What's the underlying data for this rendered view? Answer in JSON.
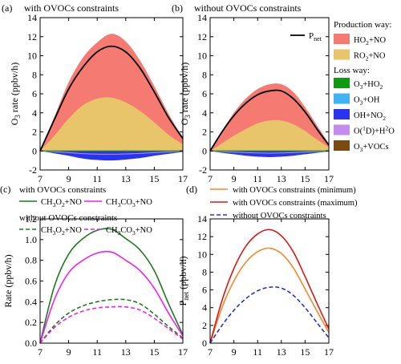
{
  "chart_data": [
    {
      "panel": "(a)",
      "title": "with OVOCs constraints",
      "type": "area",
      "ylabel": "O3 rate (ppbv/h)",
      "ylabel_main": "O",
      "ylabel_sub": "3",
      "ylabel_rest": " rate (ppbv/h)",
      "xlim": [
        7,
        17
      ],
      "ylim": [
        -2,
        14
      ],
      "xticks": [
        "7",
        "9",
        "11",
        "13",
        "15",
        "17"
      ],
      "yticks": [
        "-2",
        "0",
        "2",
        "4",
        "6",
        "8",
        "10",
        "12",
        "14"
      ],
      "x": [
        7,
        8,
        9,
        10,
        11,
        12,
        13,
        14,
        15,
        16,
        17
      ],
      "series": [
        {
          "name": "RO2+NO",
          "color": "#e8c46a",
          "values": [
            0,
            1.6,
            3.4,
            4.8,
            5.5,
            5.6,
            5.1,
            4.2,
            3.0,
            1.7,
            0.7
          ]
        },
        {
          "name": "HO2+NO",
          "color": "#f47a72",
          "values": [
            0,
            2.0,
            3.8,
            5.0,
            5.9,
            6.7,
            6.4,
            5.3,
            3.8,
            2.2,
            0.7
          ]
        },
        {
          "name": "OH+NO2",
          "color": "#2a33f0",
          "values": [
            0,
            -0.25,
            -0.5,
            -0.8,
            -0.95,
            -1.0,
            -0.9,
            -0.75,
            -0.5,
            -0.3,
            -0.1
          ]
        }
      ],
      "pnet": [
        0,
        3.3,
        6.5,
        8.8,
        10.4,
        11.0,
        10.4,
        8.7,
        6.2,
        3.5,
        1.3
      ]
    },
    {
      "panel": "(b)",
      "title": "without OVOCs constraints",
      "type": "area",
      "ylabel": "O3 rate (ppbv/h)",
      "ylabel_main": "O",
      "ylabel_sub": "3",
      "ylabel_rest": " rate (ppbv/h)",
      "xlim": [
        7,
        17
      ],
      "ylim": [
        -2,
        14
      ],
      "xticks": [
        "7",
        "9",
        "11",
        "13",
        "15",
        "17"
      ],
      "yticks": [
        "-2",
        "0",
        "2",
        "4",
        "6",
        "8",
        "10",
        "12",
        "14"
      ],
      "x": [
        7,
        8,
        9,
        10,
        11,
        12,
        13,
        14,
        15,
        16,
        17
      ],
      "series": [
        {
          "name": "RO2+NO",
          "color": "#e8c46a",
          "values": [
            0,
            0.8,
            1.6,
            2.3,
            2.9,
            3.2,
            3.2,
            2.8,
            2.1,
            1.2,
            0.4
          ]
        },
        {
          "name": "HO2+NO",
          "color": "#f47a72",
          "values": [
            0,
            1.3,
            2.4,
            3.2,
            3.6,
            3.8,
            3.8,
            3.4,
            2.5,
            1.5,
            0.4
          ]
        },
        {
          "name": "OH+NO2",
          "color": "#2a33f0",
          "values": [
            0,
            -0.2,
            -0.35,
            -0.5,
            -0.6,
            -0.65,
            -0.6,
            -0.5,
            -0.35,
            -0.2,
            -0.05
          ]
        }
      ],
      "pnet": [
        0,
        2.0,
        3.7,
        5.0,
        5.9,
        6.3,
        6.3,
        5.5,
        4.1,
        2.3,
        0.6
      ],
      "legend_pnet_main": "P",
      "legend_pnet_sub": "net"
    },
    {
      "panel": "(c)",
      "type": "line",
      "ylabel": "Rate (ppbv/h)",
      "xlim": [
        7,
        17
      ],
      "ylim": [
        0,
        1.2
      ],
      "xticks": [
        "7",
        "9",
        "11",
        "13",
        "15",
        "17"
      ],
      "yticks": [
        "0.0",
        "0.2",
        "0.4",
        "0.6",
        "0.8",
        "1.0",
        "1.2"
      ],
      "x": [
        7,
        8,
        9,
        10,
        11,
        12,
        13,
        14,
        15,
        16,
        17
      ],
      "legend_header_with": "with OVOCs constraints",
      "legend_header_without": "without OVOCs constraints",
      "series": [
        {
          "name": "CH3O2+NO",
          "label_parts": [
            "CH",
            "3",
            "O",
            "2",
            "+NO"
          ],
          "group": "with",
          "color": "#1e7a1e",
          "dash": false,
          "values": [
            0.0,
            0.55,
            0.86,
            1.01,
            1.09,
            1.1,
            1.01,
            0.9,
            0.7,
            0.38,
            0.08
          ]
        },
        {
          "name": "CH3CO3+NO",
          "label_parts": [
            "CH",
            "3",
            "CO",
            "3",
            "+NO"
          ],
          "group": "with",
          "color": "#ee22ee",
          "dash": false,
          "values": [
            0.0,
            0.42,
            0.68,
            0.8,
            0.87,
            0.88,
            0.8,
            0.7,
            0.53,
            0.29,
            0.07
          ]
        },
        {
          "name": "CH3O2+NO",
          "label_parts": [
            "CH",
            "3",
            "O",
            "2",
            "+NO"
          ],
          "group": "without",
          "color": "#1e7a1e",
          "dash": true,
          "values": [
            0.0,
            0.17,
            0.29,
            0.36,
            0.4,
            0.42,
            0.42,
            0.38,
            0.28,
            0.16,
            0.05
          ]
        },
        {
          "name": "CH3CO3+NO",
          "label_parts": [
            "CH",
            "3",
            "CO",
            "3",
            "+NO"
          ],
          "group": "without",
          "color": "#ee22ee",
          "dash": true,
          "values": [
            0.0,
            0.15,
            0.25,
            0.31,
            0.34,
            0.35,
            0.35,
            0.32,
            0.24,
            0.14,
            0.04
          ]
        }
      ]
    },
    {
      "panel": "(d)",
      "type": "line",
      "ylabel": "Pnet (ppbv/h)",
      "ylabel_main": "P",
      "ylabel_sub": "net",
      "ylabel_rest": " (ppbv/h)",
      "xlim": [
        7,
        17
      ],
      "ylim": [
        0,
        14
      ],
      "xticks": [
        "7",
        "9",
        "11",
        "13",
        "15",
        "17"
      ],
      "yticks": [
        "0",
        "2",
        "4",
        "6",
        "8",
        "10",
        "12",
        "14"
      ],
      "x": [
        7,
        8,
        9,
        10,
        11,
        12,
        13,
        14,
        15,
        16,
        17
      ],
      "series": [
        {
          "name": "with OVOCs constraints (minimum)",
          "color": "#f08a2a",
          "dash": false,
          "values": [
            0,
            4.0,
            7.0,
            9.1,
            10.3,
            10.7,
            10.1,
            8.5,
            6.1,
            3.6,
            1.2
          ]
        },
        {
          "name": "with OVOCs constraints (maximum)",
          "color": "#d61a1a",
          "dash": false,
          "values": [
            0,
            4.8,
            8.4,
            10.9,
            12.3,
            12.8,
            12.1,
            10.3,
            7.5,
            4.5,
            1.6
          ]
        },
        {
          "name": "without OVOCs constraints",
          "color": "#2233dd",
          "dash": true,
          "values": [
            0,
            2.0,
            3.7,
            5.0,
            5.9,
            6.3,
            6.2,
            5.4,
            4.0,
            2.3,
            0.6
          ]
        }
      ]
    }
  ],
  "legend_ab": {
    "production_header": "Production way:",
    "loss_header": "Loss way:",
    "items": [
      {
        "group": "production",
        "color": "#f47a72",
        "parts": [
          "HO",
          "2",
          "+NO"
        ]
      },
      {
        "group": "production",
        "color": "#e8c46a",
        "parts": [
          "RO",
          "2",
          "+NO"
        ]
      },
      {
        "group": "loss",
        "color": "#0f9a0f",
        "parts": [
          "O",
          "3",
          "+HO",
          "2",
          ""
        ]
      },
      {
        "group": "loss",
        "color": "#3fb4f0",
        "parts": [
          "O",
          "3",
          "+OH"
        ]
      },
      {
        "group": "loss",
        "color": "#2a33f0",
        "parts": [
          "OH+NO",
          "2",
          ""
        ]
      },
      {
        "group": "loss",
        "color": "#c58cf0",
        "parts": [
          "O(",
          "1",
          "D)+H",
          "2",
          "O"
        ],
        "super_first": true
      },
      {
        "group": "loss",
        "color": "#7a4a10",
        "parts": [
          "O",
          "3",
          "+VOCs"
        ]
      }
    ]
  }
}
